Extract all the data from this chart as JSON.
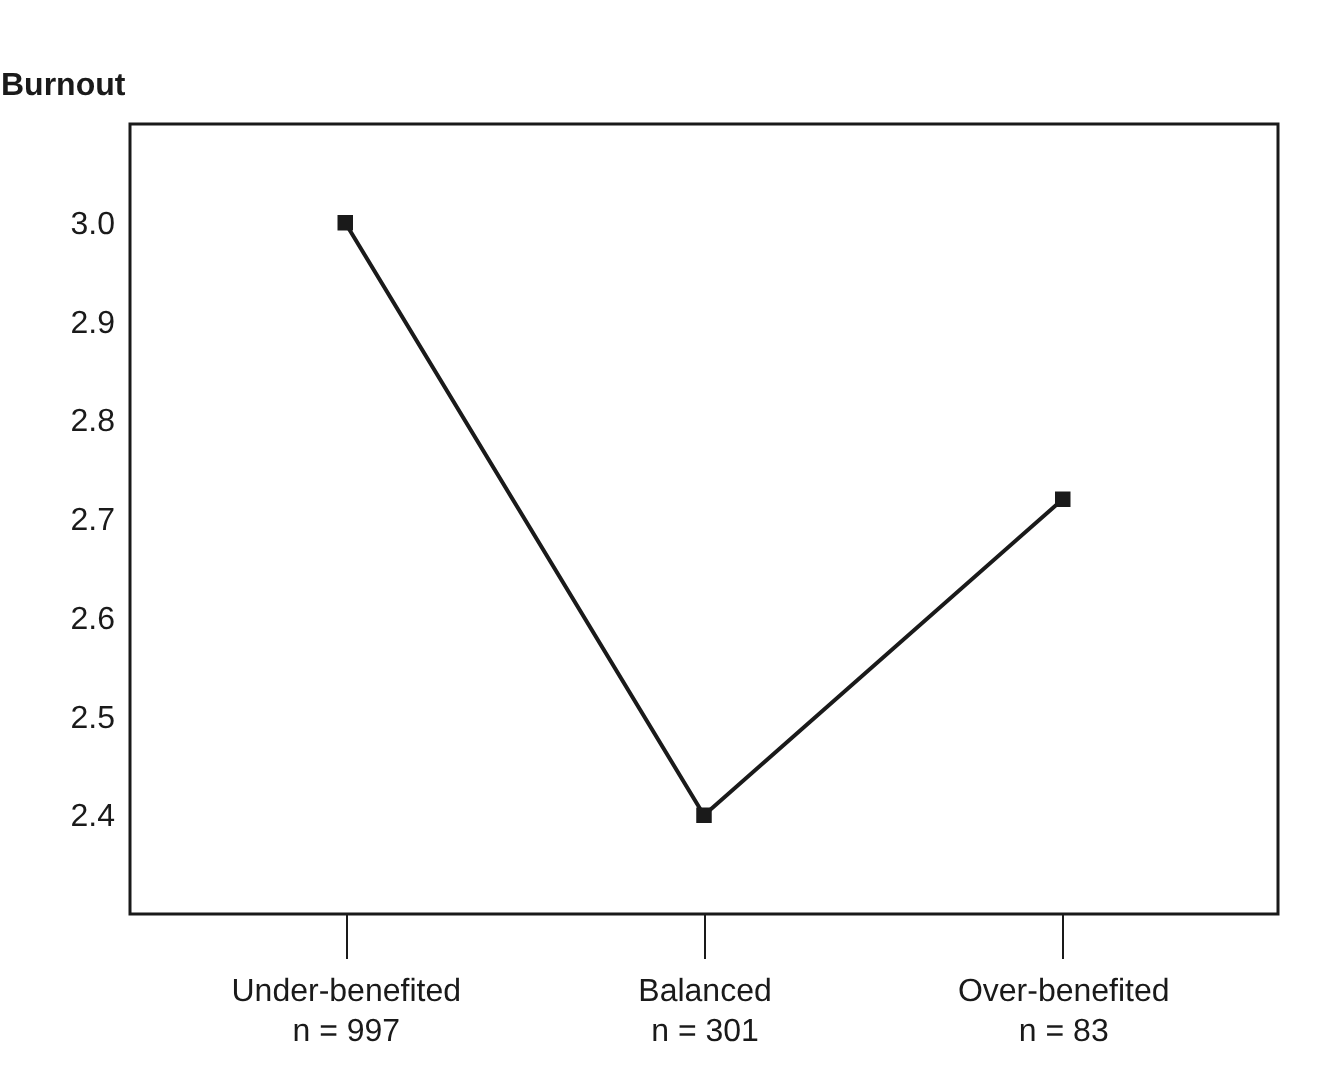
{
  "chart_data": {
    "type": "line",
    "ylabel": "Burnout",
    "categories": [
      "Under-benefited\nn = 997",
      "Balanced\nn = 301",
      "Over-benefited\nn = 83"
    ],
    "series": [
      {
        "color": "#1a1a1a",
        "values": [
          3.0,
          2.4,
          2.72
        ]
      }
    ],
    "ylim": [
      2.3,
      3.1
    ],
    "yticks": [
      2.4,
      2.5,
      2.6,
      2.7,
      2.8,
      2.9,
      {
        "value": 3,
        "label": "3.0"
      }
    ],
    "grid": false,
    "marker": "square",
    "line_style": "solid"
  }
}
